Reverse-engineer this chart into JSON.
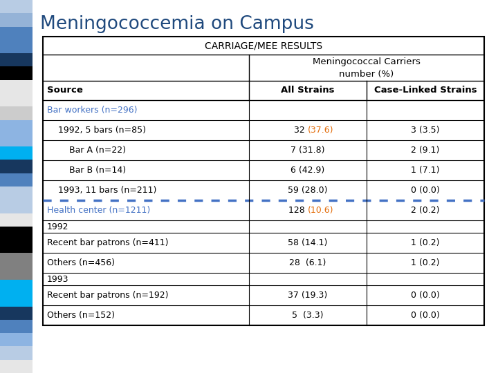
{
  "title": "Meningococcemia on Campus",
  "title_color": "#1F497D",
  "table_header": "CARRIAGE/MEE RESULTS",
  "subheader": "Meningococcal Carriers\nnumber (%)",
  "col_source": "Source",
  "col_all": "All Strains",
  "col_case": "Case-Linked Strains",
  "blue_color": "#4472C4",
  "orange_color": "#E36C09",
  "left_strip": [
    "#B8CCE4",
    "#95B3D7",
    "#4F81BD",
    "#4F81BD",
    "#17375E",
    "#000000",
    "#E6E6E6",
    "#E6E6E6",
    "#CCC",
    "#8DB4E2",
    "#8DB4E2",
    "#00B0F0",
    "#17375E",
    "#4F81BD",
    "#B8CCE4",
    "#B8CCE4",
    "#E6E6E6",
    "#000000",
    "#000000",
    "#808080",
    "#808080",
    "#00B0F0",
    "#00B0F0",
    "#17375E",
    "#4F81BD",
    "#8DB4E2",
    "#B8CCE4",
    "#E6E6E6"
  ],
  "rows": [
    {
      "label": "Bar workers (n=296)",
      "c1": "",
      "c2": "",
      "lc": "blue",
      "dashed_after": false,
      "year_header": false
    },
    {
      "label": "1992, 5 bars (n=85)",
      "c1": "32 ",
      "c1o": "(37.6)",
      "c2": "3 (3.5)",
      "lc": "black",
      "indent": 16,
      "dashed_after": false,
      "year_header": false
    },
    {
      "label": "Bar A (n=22)",
      "c1": "7 (31.8)",
      "c1o": "",
      "c2": "2 (9.1)",
      "lc": "black",
      "indent": 32,
      "dashed_after": false,
      "year_header": false
    },
    {
      "label": "Bar B (n=14)",
      "c1": "6 (42.9)",
      "c1o": "",
      "c2": "1 (7.1)",
      "lc": "black",
      "indent": 32,
      "dashed_after": false,
      "year_header": false
    },
    {
      "label": "1993, 11 bars (n=211)",
      "c1": "59 (28.0)",
      "c1o": "",
      "c2": "0 (0.0)",
      "lc": "black",
      "indent": 16,
      "dashed_after": true,
      "year_header": false
    },
    {
      "label": "Health center (n=1211)",
      "c1": "128 ",
      "c1o": "(10.6)",
      "c2": "2 (0.2)",
      "lc": "blue",
      "indent": 0,
      "dashed_after": false,
      "year_header": false
    },
    {
      "label": "1992",
      "c1": "",
      "c1o": "",
      "c2": "",
      "lc": "black",
      "indent": 0,
      "dashed_after": false,
      "year_header": true
    },
    {
      "label": "Recent bar patrons (n=411)",
      "c1": "58 (14.1)",
      "c1o": "",
      "c2": "1 (0.2)",
      "lc": "black",
      "indent": 0,
      "dashed_after": false,
      "year_header": false
    },
    {
      "label": "Others (n=456)",
      "c1": "28  (6.1)",
      "c1o": "",
      "c2": "1 (0.2)",
      "lc": "black",
      "indent": 0,
      "dashed_after": false,
      "year_header": false
    },
    {
      "label": "1993",
      "c1": "",
      "c1o": "",
      "c2": "",
      "lc": "black",
      "indent": 0,
      "dashed_after": false,
      "year_header": true
    },
    {
      "label": "Recent bar patrons (n=192)",
      "c1": "37 (19.3)",
      "c1o": "",
      "c2": "0 (0.0)",
      "lc": "black",
      "indent": 0,
      "dashed_after": false,
      "year_header": false
    },
    {
      "label": "Others (n=152)",
      "c1": "5  (3.3)",
      "c1o": "",
      "c2": "0 (0.0)",
      "lc": "black",
      "indent": 0,
      "dashed_after": false,
      "year_header": false
    }
  ]
}
